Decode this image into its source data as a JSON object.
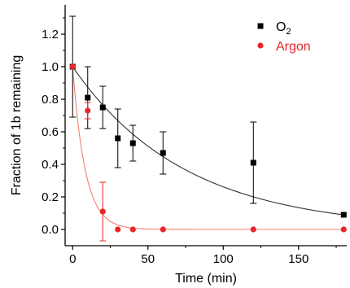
{
  "chart_data": {
    "type": "scatter",
    "xlabel": "Time (min)",
    "ylabel": "Fraction of 1b remaining",
    "xlim": [
      -5,
      182
    ],
    "ylim": [
      -0.1,
      1.38
    ],
    "x_ticks": [
      0,
      50,
      100,
      150
    ],
    "y_ticks": [
      0.0,
      0.2,
      0.4,
      0.6,
      0.8,
      1.0,
      1.2
    ],
    "x_tick_labels": [
      "0",
      "50",
      "100",
      "150"
    ],
    "y_tick_labels": [
      "0.0",
      "0.2",
      "0.4",
      "0.6",
      "0.8",
      "1.0",
      "1.2"
    ],
    "legend_position": "top-right",
    "grid": false,
    "series": [
      {
        "name": "O",
        "name_subscript": "2",
        "marker": "square",
        "color": "#000000",
        "fit_color": "#333333",
        "points": [
          {
            "x": 0,
            "y": 1.0,
            "err": 0.31
          },
          {
            "x": 10,
            "y": 0.81,
            "err": 0.19
          },
          {
            "x": 20,
            "y": 0.75,
            "err": 0.13
          },
          {
            "x": 30,
            "y": 0.56,
            "err": 0.18
          },
          {
            "x": 40,
            "y": 0.53,
            "err": 0.11
          },
          {
            "x": 60,
            "y": 0.47,
            "err": 0.13
          },
          {
            "x": 120,
            "y": 0.41,
            "err": 0.25
          },
          {
            "x": 180,
            "y": 0.09,
            "err": 0
          }
        ],
        "fit": {
          "model": "exponential decay",
          "k": 0.0134
        }
      },
      {
        "name": "Argon",
        "marker": "circle",
        "color": "#e8262b",
        "fit_color": "#f08070",
        "points": [
          {
            "x": 0,
            "y": 1.0,
            "err": 0
          },
          {
            "x": 10,
            "y": 0.73,
            "err": 0.05
          },
          {
            "x": 20,
            "y": 0.11,
            "err": 0.18
          },
          {
            "x": 30,
            "y": 0.0,
            "err": 0
          },
          {
            "x": 40,
            "y": 0.0,
            "err": 0
          },
          {
            "x": 60,
            "y": 0.0,
            "err": 0
          },
          {
            "x": 120,
            "y": 0.0,
            "err": 0
          },
          {
            "x": 180,
            "y": 0.0,
            "err": 0
          }
        ],
        "fit": {
          "model": "exponential decay",
          "k": 0.12
        }
      }
    ]
  }
}
